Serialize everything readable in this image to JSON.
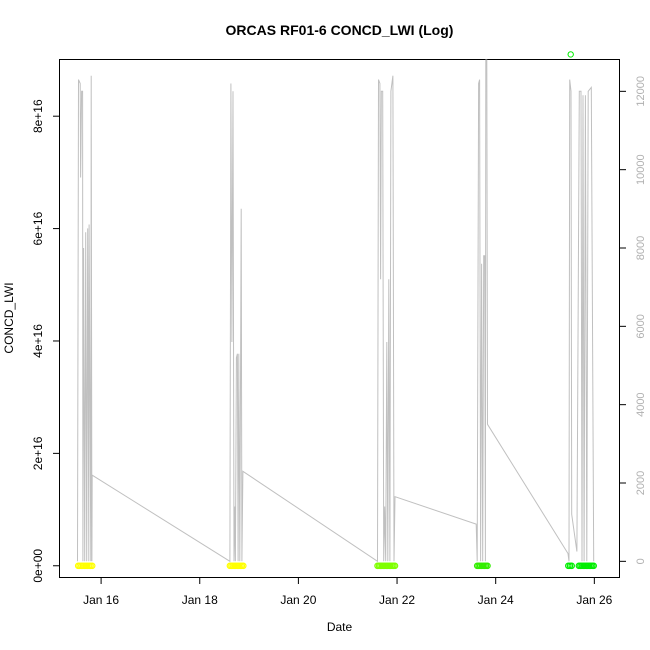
{
  "chart_data": {
    "type": "scatter",
    "title": "ORCAS RF01-6 CONCD_LWI (Log)",
    "xlabel": "Date",
    "ylabel": "CONCD_LWI",
    "xlim": [
      "2016-01-15T04:00",
      "2016-01-26T12:00"
    ],
    "ylim": [
      -2000000000000000,
      90000000000000000
    ],
    "y2lim": [
      -400,
      12800
    ],
    "x_ticks": [
      "2016-01-16",
      "2016-01-18",
      "2016-01-20",
      "2016-01-22",
      "2016-01-24",
      "2016-01-26"
    ],
    "x_tick_labels": [
      "Jan 16",
      "Jan 18",
      "Jan 20",
      "Jan 22",
      "Jan 24",
      "Jan 26"
    ],
    "y_ticks": [
      0,
      20000000000000000,
      40000000000000000,
      60000000000000000,
      80000000000000000
    ],
    "y_tick_labels": [
      "0e+00",
      "2e+16",
      "4e+16",
      "6e+16",
      "8e+16"
    ],
    "y2_ticks": [
      0,
      2000,
      4000,
      6000,
      8000,
      10000,
      12000
    ],
    "y2_tick_labels": [
      "0",
      "2000",
      "4000",
      "6000",
      "8000",
      "10000",
      "12000"
    ],
    "colors": {
      "flight1": "#ffff00",
      "flight2": "#ffff00",
      "flight3": "#7fff00",
      "flight4": "#33ee00",
      "flight5": "#00ee00",
      "flight6": "#00ee00",
      "outlier": "#00ee00",
      "altitude": "#c0c0c0"
    },
    "series": [
      {
        "color_key": "flight1",
        "x_start": "2016-01-15T12:50",
        "x_end": "2016-01-15T19:40",
        "y": 0
      },
      {
        "color_key": "flight2",
        "x_start": "2016-01-18T14:40",
        "x_end": "2016-01-18T21:10",
        "y": 0
      },
      {
        "color_key": "flight3",
        "x_start": "2016-01-21T14:30",
        "x_end": "2016-01-21T23:00",
        "y": 0
      },
      {
        "color_key": "flight4",
        "x_start": "2016-01-23T15:00",
        "x_end": "2016-01-23T20:00",
        "y": 0
      },
      {
        "color_key": "flight5",
        "x_start": "2016-01-25T11:20",
        "x_end": "2016-01-25T13:00",
        "y": 0
      },
      {
        "color_key": "flight6",
        "x_start": "2016-01-25T16:30",
        "x_end": "2016-01-25T23:40",
        "y": 0
      }
    ],
    "outlier": {
      "x": "2016-01-25T12:30",
      "y": 91000000000000000
    },
    "altitude_line": [
      [
        "2016-01-15T12:30",
        0
      ],
      [
        "2016-01-15T13:00",
        12300
      ],
      [
        "2016-01-15T13:50",
        12200
      ],
      [
        "2016-01-15T14:00",
        9800
      ],
      [
        "2016-01-15T14:30",
        12000
      ],
      [
        "2016-01-15T15:00",
        12000
      ],
      [
        "2016-01-15T15:10",
        0
      ],
      [
        "2016-01-15T15:30",
        8000
      ],
      [
        "2016-01-15T16:00",
        0
      ],
      [
        "2016-01-15T16:30",
        8400
      ],
      [
        "2016-01-15T17:00",
        0
      ],
      [
        "2016-01-15T17:30",
        8500
      ],
      [
        "2016-01-15T18:00",
        0
      ],
      [
        "2016-01-15T18:10",
        8600
      ],
      [
        "2016-01-15T19:00",
        0
      ],
      [
        "2016-01-15T19:10",
        12400
      ],
      [
        "2016-01-15T19:30",
        0
      ],
      [
        "2016-01-15T19:40",
        2200
      ],
      [
        "2016-01-18T14:40",
        0
      ],
      [
        "2016-01-18T15:10",
        12200
      ],
      [
        "2016-01-18T15:40",
        5600
      ],
      [
        "2016-01-18T16:10",
        12000
      ],
      [
        "2016-01-18T16:40",
        0
      ],
      [
        "2016-01-18T17:00",
        1400
      ],
      [
        "2016-01-18T17:20",
        0
      ],
      [
        "2016-01-18T17:50",
        5200
      ],
      [
        "2016-01-18T18:20",
        5300
      ],
      [
        "2016-01-18T18:40",
        0
      ],
      [
        "2016-01-18T19:00",
        5300
      ],
      [
        "2016-01-18T19:30",
        0
      ],
      [
        "2016-01-18T20:10",
        9000
      ],
      [
        "2016-01-18T20:30",
        0
      ],
      [
        "2016-01-18T21:00",
        2300
      ],
      [
        "2016-01-21T14:30",
        0
      ],
      [
        "2016-01-21T15:00",
        12300
      ],
      [
        "2016-01-21T15:40",
        12200
      ],
      [
        "2016-01-21T16:00",
        7200
      ],
      [
        "2016-01-21T16:20",
        12000
      ],
      [
        "2016-01-21T17:00",
        12000
      ],
      [
        "2016-01-21T17:30",
        0
      ],
      [
        "2016-01-21T18:00",
        1400
      ],
      [
        "2016-01-21T18:30",
        0
      ],
      [
        "2016-01-21T19:00",
        5600
      ],
      [
        "2016-01-21T19:30",
        0
      ],
      [
        "2016-01-21T20:00",
        7200
      ],
      [
        "2016-01-21T20:30",
        0
      ],
      [
        "2016-01-21T21:00",
        12000
      ],
      [
        "2016-01-21T22:00",
        12400
      ],
      [
        "2016-01-21T22:30",
        0
      ],
      [
        "2016-01-21T23:00",
        1650
      ],
      [
        "2016-01-23T14:30",
        950
      ],
      [
        "2016-01-23T15:00",
        0
      ],
      [
        "2016-01-23T15:40",
        12200
      ],
      [
        "2016-01-23T16:10",
        12300
      ],
      [
        "2016-01-23T16:40",
        0
      ],
      [
        "2016-01-23T17:10",
        7600
      ],
      [
        "2016-01-23T17:40",
        0
      ],
      [
        "2016-01-23T18:10",
        7800
      ],
      [
        "2016-01-23T18:40",
        7800
      ],
      [
        "2016-01-23T19:00",
        0
      ],
      [
        "2016-01-23T19:10",
        12800
      ],
      [
        "2016-01-23T19:40",
        12800
      ],
      [
        "2016-01-23T20:00",
        3500
      ],
      [
        "2016-01-25T11:10",
        200
      ],
      [
        "2016-01-25T11:40",
        0
      ],
      [
        "2016-01-25T12:00",
        12300
      ],
      [
        "2016-01-25T12:40",
        12000
      ],
      [
        "2016-01-25T13:00",
        1200
      ],
      [
        "2016-01-25T15:30",
        250
      ],
      [
        "2016-01-25T16:40",
        12000
      ],
      [
        "2016-01-25T17:30",
        12000
      ],
      [
        "2016-01-25T18:00",
        0
      ],
      [
        "2016-01-25T18:30",
        11900
      ],
      [
        "2016-01-25T19:00",
        0
      ],
      [
        "2016-01-25T19:40",
        11900
      ],
      [
        "2016-01-25T20:20",
        0
      ],
      [
        "2016-01-25T21:00",
        12000
      ],
      [
        "2016-01-25T22:30",
        12100
      ],
      [
        "2016-01-25T23:40",
        0
      ]
    ],
    "grid": false,
    "legend": "none"
  }
}
